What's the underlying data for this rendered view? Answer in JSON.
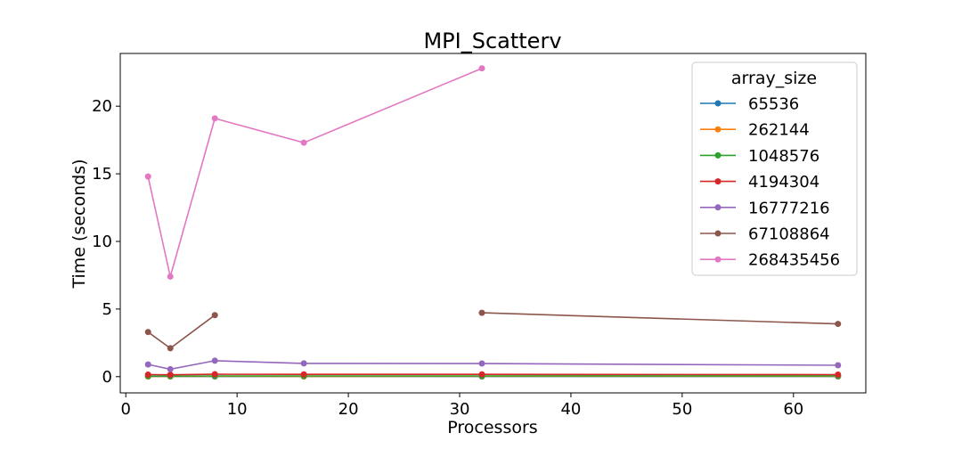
{
  "chart_data": {
    "type": "line",
    "title": "MPI_Scatterv",
    "xlabel": "Processors",
    "ylabel": "Time (seconds)",
    "xlim": [
      -0.5,
      66.5
    ],
    "ylim": [
      -1.2,
      23.9
    ],
    "xticks": [
      0,
      10,
      20,
      30,
      40,
      50,
      60
    ],
    "yticks": [
      0,
      5,
      10,
      15,
      20
    ],
    "legend_title": "array_size",
    "legend_position": "top-right",
    "grid": false,
    "series": [
      {
        "name": "65536",
        "color": "#1f77b4",
        "points": [
          [
            2,
            0.01
          ],
          [
            4,
            0.01
          ],
          [
            8,
            0.01
          ],
          [
            16,
            0.01
          ],
          [
            32,
            0.01
          ],
          [
            64,
            0.01
          ]
        ]
      },
      {
        "name": "262144",
        "color": "#ff7f0e",
        "points": [
          [
            2,
            0.02
          ],
          [
            4,
            0.02
          ],
          [
            8,
            0.03
          ],
          [
            16,
            0.02
          ],
          [
            32,
            0.03
          ],
          [
            64,
            0.03
          ]
        ]
      },
      {
        "name": "1048576",
        "color": "#2ca02c",
        "points": [
          [
            2,
            0.04
          ],
          [
            4,
            0.04
          ],
          [
            8,
            0.05
          ],
          [
            16,
            0.05
          ],
          [
            32,
            0.05
          ],
          [
            64,
            0.06
          ]
        ]
      },
      {
        "name": "4194304",
        "color": "#d62728",
        "points": [
          [
            2,
            0.15
          ],
          [
            4,
            0.14
          ],
          [
            8,
            0.18
          ],
          [
            16,
            0.17
          ],
          [
            32,
            0.17
          ],
          [
            64,
            0.15
          ]
        ]
      },
      {
        "name": "16777216",
        "color": "#9467bd",
        "points": [
          [
            2,
            0.9
          ],
          [
            4,
            0.55
          ],
          [
            8,
            1.18
          ],
          [
            16,
            0.98
          ],
          [
            32,
            0.97
          ],
          [
            64,
            0.84
          ]
        ]
      },
      {
        "name": "67108864",
        "color": "#8c564b",
        "points": [
          [
            2,
            3.3
          ],
          [
            4,
            2.1
          ],
          [
            8,
            4.55
          ],
          null,
          [
            32,
            4.72
          ],
          [
            64,
            3.9
          ]
        ]
      },
      {
        "name": "268435456",
        "color": "#e377c2",
        "points": [
          [
            2,
            14.8
          ],
          [
            4,
            7.4
          ],
          [
            8,
            19.1
          ],
          [
            16,
            17.3
          ],
          [
            32,
            22.8
          ]
        ]
      }
    ]
  }
}
